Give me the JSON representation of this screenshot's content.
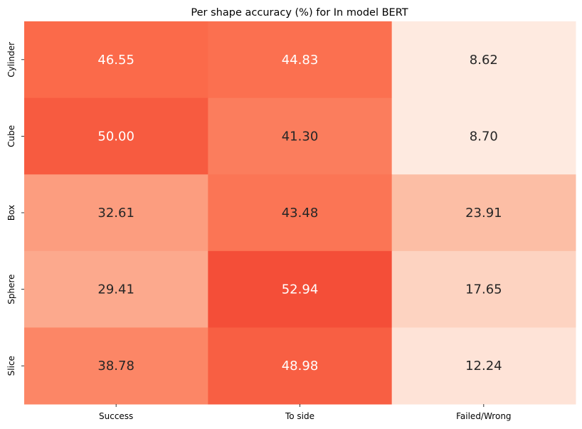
{
  "chart_data": {
    "type": "heatmap",
    "title": "Per shape accuracy (%) for In model BERT",
    "xlabel": "",
    "ylabel": "",
    "x_categories": [
      "Success",
      "To side",
      "Failed/Wrong"
    ],
    "y_categories": [
      "Cylinder",
      "Cube",
      "Box",
      "Sphere",
      "Slice"
    ],
    "values": [
      [
        46.55,
        44.83,
        8.62
      ],
      [
        50.0,
        41.3,
        8.7
      ],
      [
        32.61,
        43.48,
        23.91
      ],
      [
        29.41,
        52.94,
        17.65
      ],
      [
        38.78,
        48.98,
        12.24
      ]
    ],
    "value_labels": [
      [
        "46.55",
        "44.83",
        "8.62"
      ],
      [
        "50.00",
        "41.30",
        "8.70"
      ],
      [
        "32.61",
        "43.48",
        "23.91"
      ],
      [
        "29.41",
        "52.94",
        "17.65"
      ],
      [
        "38.78",
        "48.98",
        "12.24"
      ]
    ],
    "colormap": "Reds",
    "colorbar": false,
    "grid": false,
    "colors": {
      "low": "#fee5d9",
      "mid": "#fcbba1",
      "high": "#fb6a4a",
      "text_dark": "#262626",
      "text_light": "#ffffff"
    }
  }
}
